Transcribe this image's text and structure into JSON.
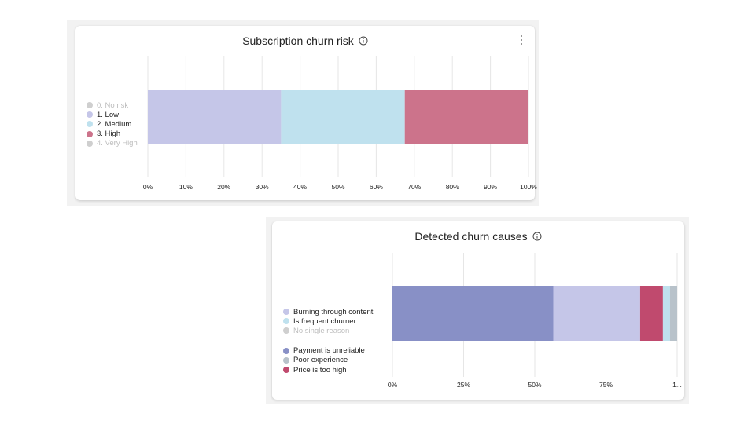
{
  "colors": {
    "grid": "#e6e6e6",
    "axis_label": "#222222",
    "muted_text": "#bdbdbd"
  },
  "chart_data": [
    {
      "type": "bar",
      "stacked": true,
      "orientation": "horizontal",
      "title": "Subscription churn risk",
      "xlim": [
        0,
        100
      ],
      "x_ticks": [
        "0%",
        "10%",
        "20%",
        "30%",
        "40%",
        "50%",
        "60%",
        "70%",
        "80%",
        "90%",
        "100%"
      ],
      "x_tick_values": [
        0,
        10,
        20,
        30,
        40,
        50,
        60,
        70,
        80,
        90,
        100
      ],
      "grid": true,
      "legend_position": "left",
      "legend": [
        {
          "label": "0. No risk",
          "color": "#cfcfcf",
          "muted": true
        },
        {
          "label": "1. Low",
          "color": "#c5c6e8",
          "muted": false
        },
        {
          "label": "2. Medium",
          "color": "#bfe1ee",
          "muted": false
        },
        {
          "label": "3. High",
          "color": "#cc738b",
          "muted": false
        },
        {
          "label": "4. Very High",
          "color": "#cfcfcf",
          "muted": true
        }
      ],
      "series": [
        {
          "name": "1. Low",
          "value": 35,
          "color": "#c5c6e8"
        },
        {
          "name": "2. Medium",
          "value": 32.5,
          "color": "#bfe1ee"
        },
        {
          "name": "3. High",
          "value": 32.5,
          "color": "#cc738b"
        }
      ]
    },
    {
      "type": "bar",
      "stacked": true,
      "orientation": "horizontal",
      "title": "Detected churn causes",
      "xlim": [
        0,
        100
      ],
      "x_ticks": [
        "0%",
        "25%",
        "50%",
        "75%",
        "1..."
      ],
      "x_tick_values": [
        0,
        25,
        50,
        75,
        100
      ],
      "grid": true,
      "legend_position": "left",
      "legend": [
        {
          "label": "Burning through content",
          "color": "#c5c6e8",
          "muted": false
        },
        {
          "label": "Is frequent churner",
          "color": "#bfe1ee",
          "muted": false
        },
        {
          "label": "No single reason",
          "color": "#cfcfcf",
          "muted": true
        },
        {
          "label": "Payment is unreliable",
          "color": "#8890c6",
          "muted": false,
          "gap_before": true
        },
        {
          "label": "Poor experience",
          "color": "#b8c2ca",
          "muted": false
        },
        {
          "label": "Price is too high",
          "color": "#c04a6e",
          "muted": false
        }
      ],
      "series": [
        {
          "name": "Payment is unreliable",
          "value": 56.5,
          "color": "#8890c6"
        },
        {
          "name": "Burning through content",
          "value": 30.5,
          "color": "#c5c6e8"
        },
        {
          "name": "Price is too high",
          "value": 8,
          "color": "#c04a6e"
        },
        {
          "name": "Is frequent churner",
          "value": 2.5,
          "color": "#bfe1ee"
        },
        {
          "name": "Poor experience",
          "value": 2.5,
          "color": "#b8c2ca"
        }
      ]
    }
  ]
}
